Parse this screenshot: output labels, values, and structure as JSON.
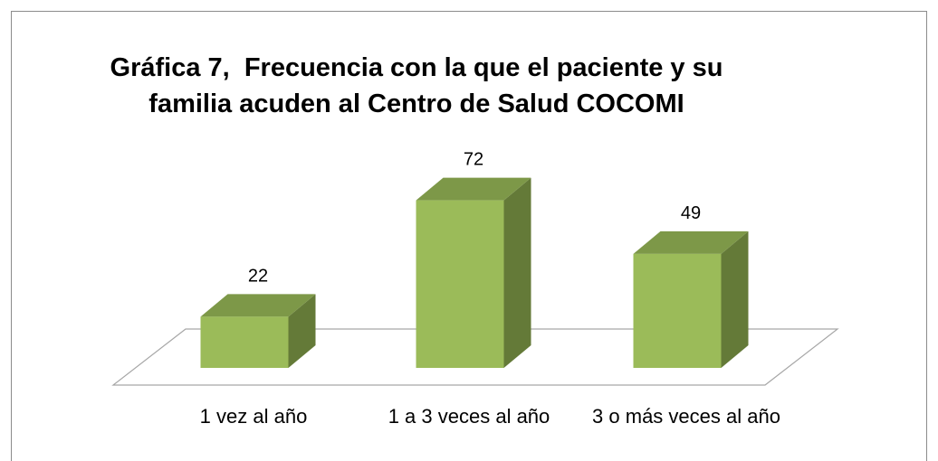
{
  "chart_data": {
    "type": "bar3d",
    "title": "Gráfica 7,  Frecuencia con la que el paciente y su familia acuden al Centro de Salud COCOMI",
    "categories": [
      "1 vez al año",
      "1 a 3 veces al año",
      "3 o más veces al año"
    ],
    "values": [
      22,
      72,
      49
    ],
    "color": "#9bbb59",
    "ylim": [
      0,
      80
    ]
  }
}
